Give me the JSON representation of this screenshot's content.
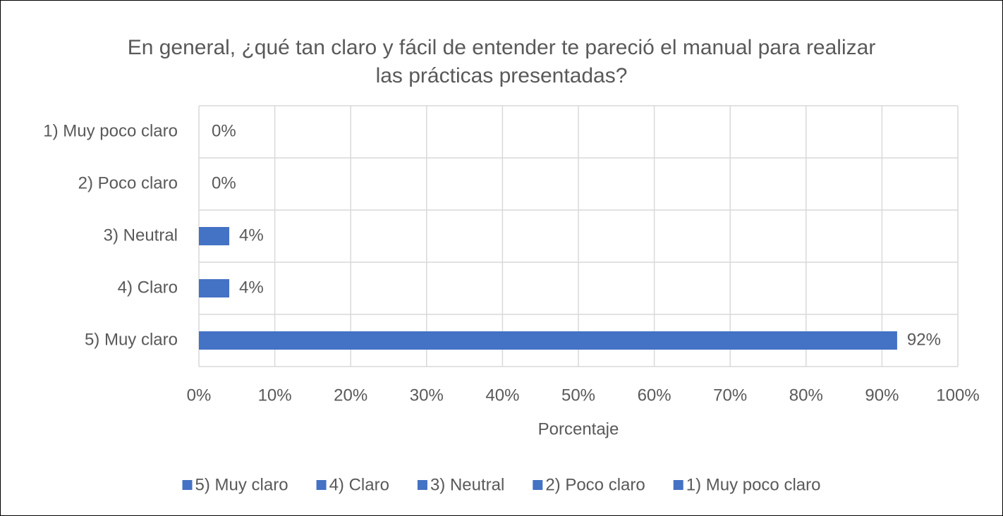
{
  "chart_data": {
    "type": "barh",
    "title": "En general, ¿qué tan claro y fácil de entender te pareció el manual para realizar las prácticas presentadas?",
    "categories": [
      "1) Muy poco claro",
      "2) Poco claro",
      "3) Neutral",
      "4) Claro",
      "5) Muy claro"
    ],
    "values": [
      0,
      0,
      4,
      4,
      92
    ],
    "value_labels": [
      "0%",
      "0%",
      "4%",
      "4%",
      "92%"
    ],
    "color": "#4472c4",
    "xlabel": "Porcentaje",
    "xlim": [
      0,
      100
    ],
    "xticks": [
      {
        "value": 0,
        "label": "0%"
      },
      {
        "value": 10,
        "label": "10%"
      },
      {
        "value": 20,
        "label": "20%"
      },
      {
        "value": 30,
        "label": "30%"
      },
      {
        "value": 40,
        "label": "40%"
      },
      {
        "value": 50,
        "label": "50%"
      },
      {
        "value": 60,
        "label": "60%"
      },
      {
        "value": 70,
        "label": "70%"
      },
      {
        "value": 80,
        "label": "80%"
      },
      {
        "value": 90,
        "label": "90%"
      },
      {
        "value": 100,
        "label": "100%"
      }
    ],
    "grid": true,
    "legend": "bottom"
  }
}
